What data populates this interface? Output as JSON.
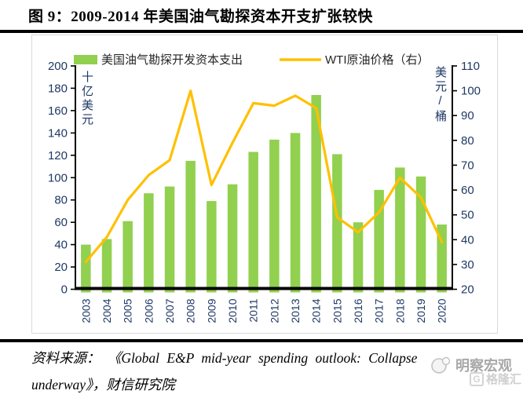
{
  "title": "图 9：2009-2014 年美国油气勘探资本开支扩张较快",
  "source": {
    "line1": "资料来源： 《Global E&P mid-year spending outlook: Collapse",
    "line2": "underway》，财信研究院"
  },
  "watermark": {
    "brand": "明察宏观",
    "partner_prefix": "G",
    "partner": "格隆汇"
  },
  "chart_data": {
    "type": "bar",
    "title": "",
    "categories": [
      "2003",
      "2004",
      "2005",
      "2006",
      "2007",
      "2008",
      "2009",
      "2010",
      "2011",
      "2012",
      "2013",
      "2014",
      "2015",
      "2016",
      "2017",
      "2018",
      "2019",
      "2020"
    ],
    "series": [
      {
        "name": "美国油气勘探开发资本支出",
        "type": "bar",
        "axis": "left",
        "color": "#92D050",
        "values": [
          40,
          45,
          61,
          86,
          92,
          115,
          79,
          94,
          123,
          134,
          140,
          174,
          121,
          60,
          89,
          109,
          101,
          58
        ]
      },
      {
        "name": "WTI原油价格（右）",
        "type": "line",
        "axis": "right",
        "color": "#FFC000",
        "values": [
          31,
          41,
          56,
          66,
          72,
          100,
          62,
          79,
          95,
          94,
          98,
          93,
          49,
          43,
          51,
          65,
          57,
          39
        ]
      }
    ],
    "left_axis": {
      "title": "十亿美元",
      "min": 0,
      "max": 200,
      "step": 20
    },
    "right_axis": {
      "title": "美元/桶",
      "min": 20,
      "max": 110,
      "step": 10
    },
    "legend_position": "top",
    "grid": false,
    "axis_text_color": "#1F3864"
  }
}
